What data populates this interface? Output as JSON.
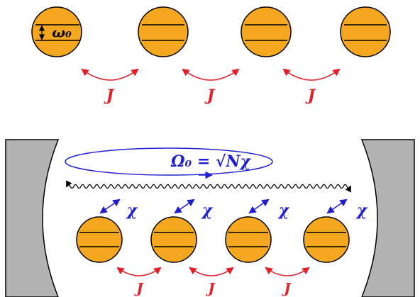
{
  "top": {
    "frequency_label": "ω₀",
    "couplings": [
      "J",
      "J",
      "J"
    ]
  },
  "cavity": {
    "collective_label": "Ω₀ = √Nχ",
    "atom_couplings": [
      "χ",
      "χ",
      "χ",
      "χ"
    ],
    "couplings": [
      "J",
      "J",
      "J"
    ]
  }
}
